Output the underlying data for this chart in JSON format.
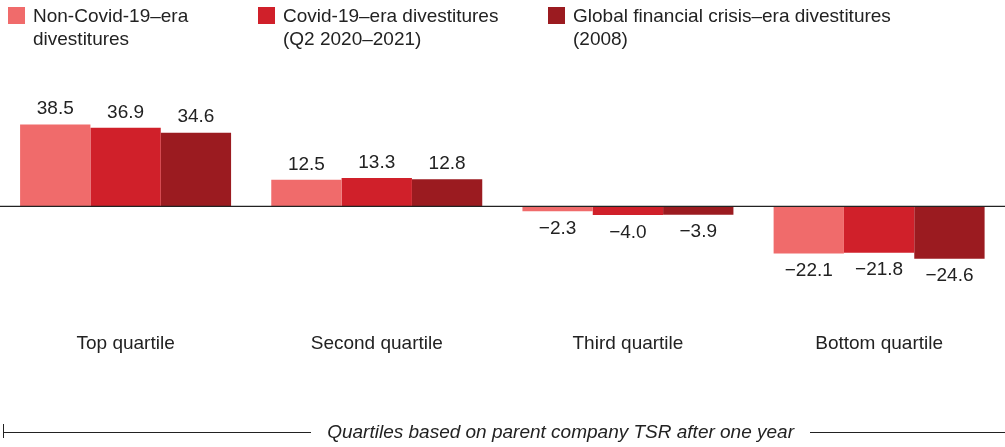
{
  "chart_data": {
    "type": "bar",
    "categories": [
      "Top quartile",
      "Second quartile",
      "Third quartile",
      "Bottom quartile"
    ],
    "series": [
      {
        "name": "Non-Covid-19–era divestitures",
        "color": "#f06b6b",
        "values": [
          38.5,
          12.5,
          -2.3,
          -22.1
        ]
      },
      {
        "name": "Covid-19–era divestitures (Q2 2020–2021)",
        "color": "#d0202a",
        "values": [
          36.9,
          13.3,
          -4.0,
          -21.8
        ],
        "value_labels": [
          "36.9",
          "13.3",
          "−4.0",
          "−21.8"
        ]
      },
      {
        "name": "Global financial crisis–era divestitures (2008)",
        "color": "#9b1b20",
        "values": [
          34.6,
          12.8,
          -3.9,
          -24.6
        ]
      }
    ],
    "xlabel": "Quartiles based on parent company TSR after one year",
    "data_labels": true,
    "legend": "top left",
    "grid": false
  }
}
